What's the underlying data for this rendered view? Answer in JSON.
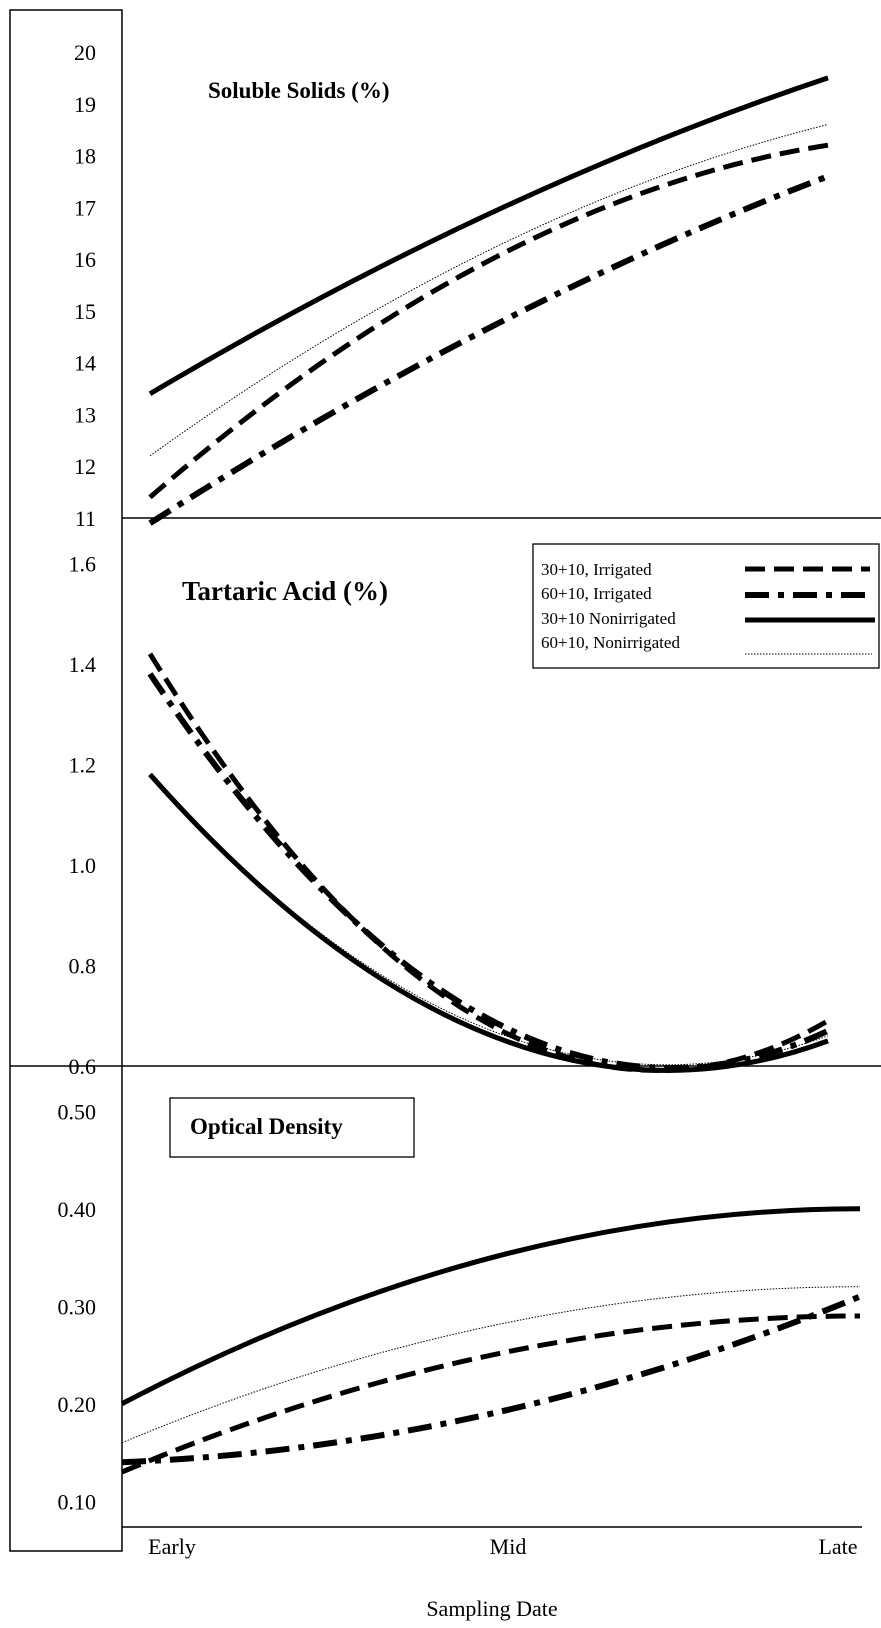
{
  "x_axis": {
    "label": "Sampling Date",
    "ticks": [
      "Early",
      "Mid",
      "Late"
    ]
  },
  "legend": {
    "entries": [
      {
        "label": "30+10, Irrigated",
        "style": "dashed"
      },
      {
        "label": "60+10, Irrigated",
        "style": "dash-dot"
      },
      {
        "label": "30+10 Nonirrigated",
        "style": "solid"
      },
      {
        "label": "60+10, Nonirrigated",
        "style": "dotted"
      }
    ]
  },
  "chart_data": [
    {
      "type": "line",
      "title": "Soluble Solids (%)",
      "x": [
        "Early",
        "Mid",
        "Late"
      ],
      "ylim": [
        11,
        20
      ],
      "yticks": [
        "11",
        "12",
        "13",
        "14",
        "15",
        "16",
        "17",
        "18",
        "19",
        "20"
      ],
      "series": [
        {
          "name": "30+10, Irrigated",
          "values": [
            11.4,
            16.0,
            18.2
          ]
        },
        {
          "name": "60+10, Irrigated",
          "values": [
            10.9,
            14.7,
            17.6
          ]
        },
        {
          "name": "30+10 Nonirrigated",
          "values": [
            13.4,
            16.9,
            19.5
          ]
        },
        {
          "name": "60+10, Nonirrigated",
          "values": [
            12.2,
            16.2,
            18.6
          ]
        }
      ]
    },
    {
      "type": "line",
      "title": "Tartaric Acid (%)",
      "x": [
        "Early",
        "Mid",
        "Late"
      ],
      "ylim": [
        0.6,
        1.7
      ],
      "yticks": [
        "0.6",
        "0.8",
        "1.0",
        "1.2",
        "1.4",
        "1.6"
      ],
      "series": [
        {
          "name": "30+10, Irrigated",
          "values": [
            1.42,
            0.68,
            0.69
          ]
        },
        {
          "name": "60+10, Irrigated",
          "values": [
            1.38,
            0.69,
            0.67
          ]
        },
        {
          "name": "30+10 Nonirrigated",
          "values": [
            1.18,
            0.66,
            0.65
          ]
        },
        {
          "name": "60+10, Nonirrigated",
          "values": [
            1.18,
            0.67,
            0.66
          ]
        }
      ]
    },
    {
      "type": "line",
      "title": "Optical Density",
      "x": [
        "Early",
        "Mid",
        "Late"
      ],
      "ylim": [
        0.05,
        0.57
      ],
      "yticks": [
        "0.10",
        "0.20",
        "0.30",
        "0.40",
        "0.50"
      ],
      "series": [
        {
          "name": "30+10, Irrigated",
          "values": [
            0.13,
            0.25,
            0.29
          ]
        },
        {
          "name": "60+10, Irrigated",
          "values": [
            0.14,
            0.19,
            0.31
          ]
        },
        {
          "name": "30+10 Nonirrigated",
          "values": [
            0.2,
            0.35,
            0.4
          ]
        },
        {
          "name": "60+10, Nonirrigated",
          "values": [
            0.16,
            0.28,
            0.32
          ]
        }
      ]
    }
  ]
}
